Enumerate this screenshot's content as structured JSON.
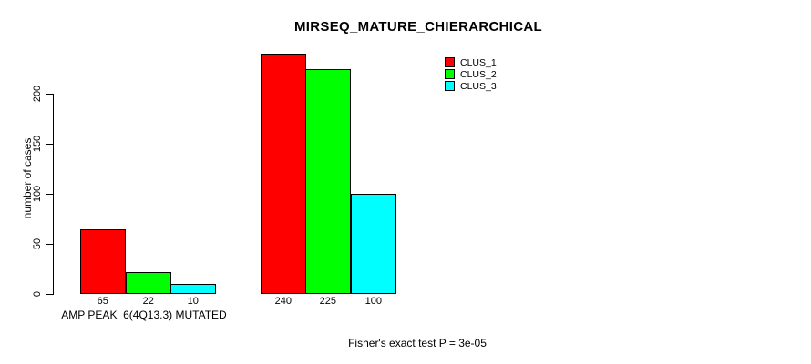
{
  "title": "MIRSEQ_MATURE_CHIERARCHICAL",
  "subtitle": "Fisher's exact test P = 3e-05",
  "chart_data": {
    "type": "bar",
    "title": "MIRSEQ_MATURE_CHIERARCHICAL",
    "xlabel": "",
    "ylabel": "number of cases",
    "ylim": [
      0,
      240
    ],
    "yticks": [
      0,
      50,
      100,
      150,
      200
    ],
    "grid": false,
    "legend_position": "top-right-inside",
    "categories": [
      "AMP PEAK  6(4Q13.3) MUTATED",
      ""
    ],
    "series": [
      {
        "name": "CLUS_1",
        "color": "#ff0000",
        "values": [
          65,
          240
        ]
      },
      {
        "name": "CLUS_2",
        "color": "#00ff00",
        "values": [
          22,
          225
        ]
      },
      {
        "name": "CLUS_3",
        "color": "#00ffff",
        "values": [
          10,
          100
        ]
      }
    ],
    "bar_value_labels": [
      [
        65,
        22,
        10
      ],
      [
        240,
        225,
        100
      ]
    ],
    "annotation": "Fisher's exact test P = 3e-05",
    "axis_color": "#000000",
    "bar_border_color": "#000000"
  }
}
